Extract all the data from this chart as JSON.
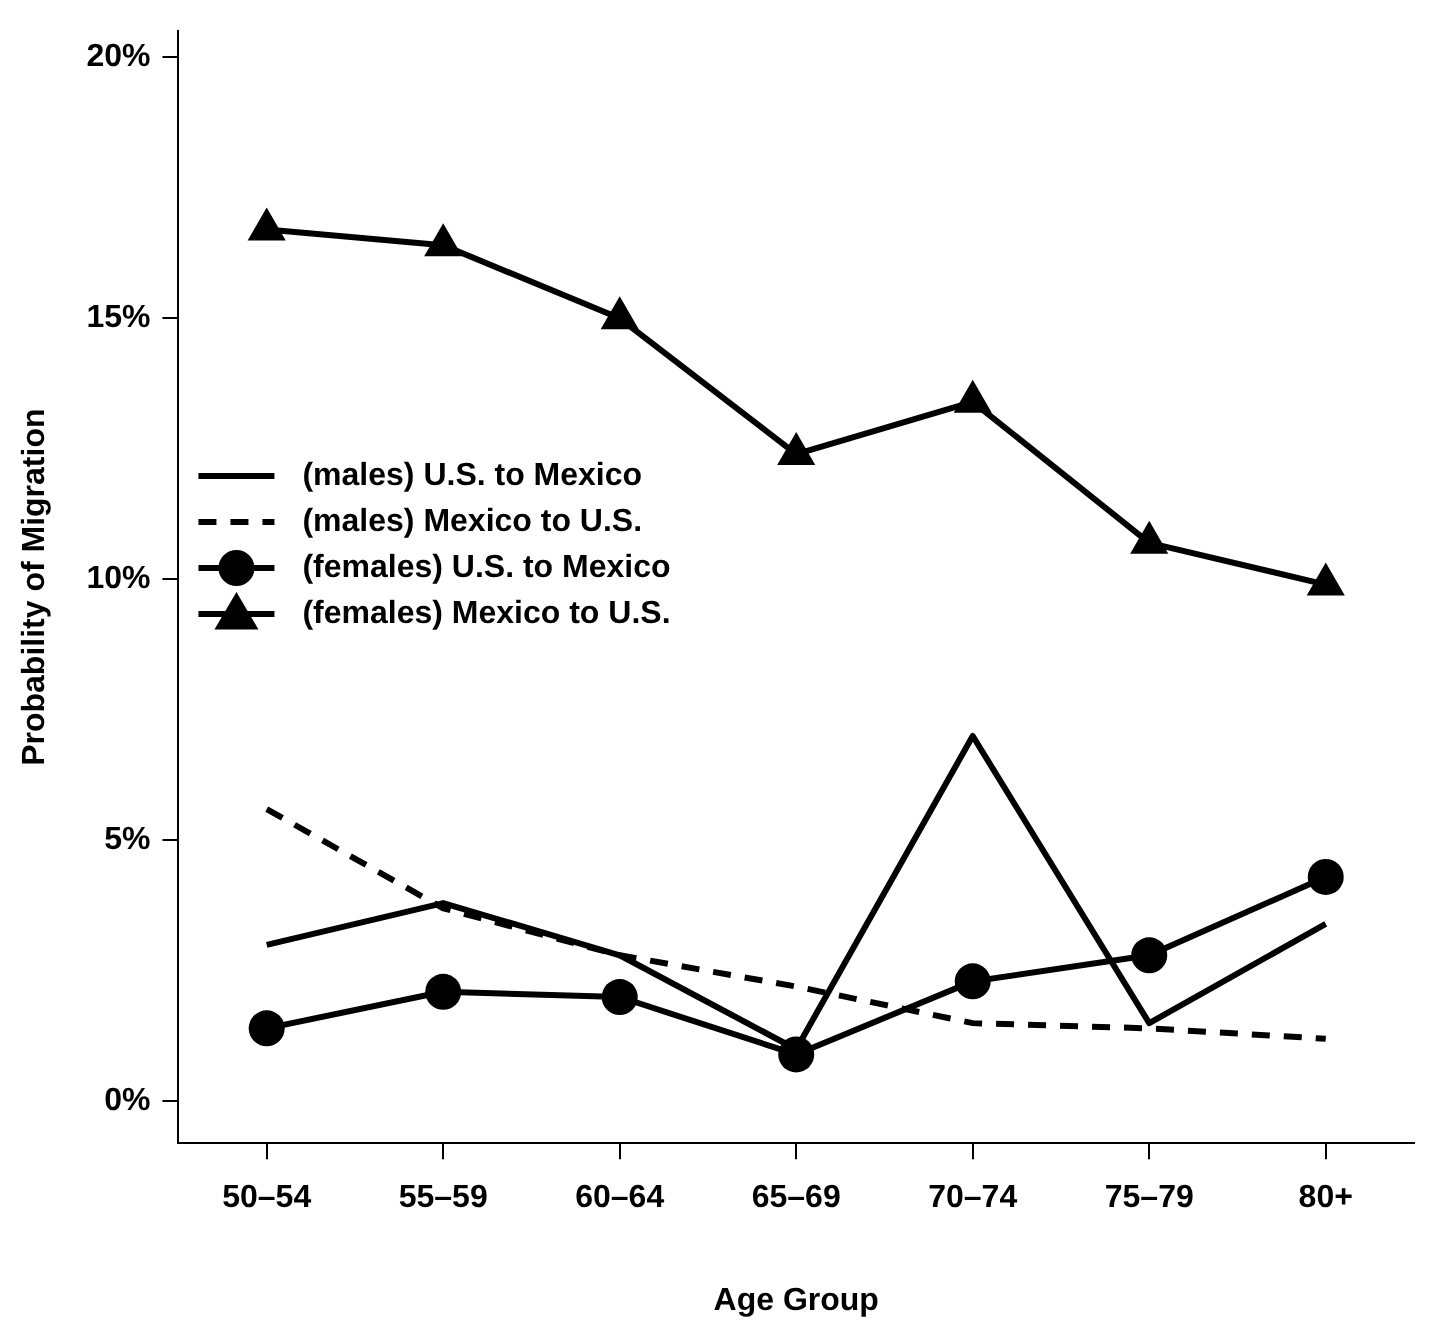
{
  "chart_data": {
    "type": "line",
    "xlabel": "Age Group",
    "ylabel": "Probability of Migration",
    "categories": [
      "50–54",
      "55–59",
      "60–64",
      "65–69",
      "70–74",
      "75–79",
      "80+"
    ],
    "series": [
      {
        "name": "(males) U.S. to Mexico",
        "color": "#000000",
        "marker": "none",
        "line_style": "solid",
        "values": [
          3.0,
          3.8,
          2.8,
          1.0,
          7.0,
          1.5,
          3.4
        ]
      },
      {
        "name": "(males) Mexico to U.S.",
        "color": "#000000",
        "marker": "none",
        "line_style": "dashed",
        "values": [
          5.6,
          3.7,
          2.8,
          2.2,
          1.5,
          1.4,
          1.2
        ]
      },
      {
        "name": "(females) U.S. to Mexico",
        "color": "#000000",
        "marker": "circle",
        "line_style": "solid",
        "values": [
          1.4,
          2.1,
          2.0,
          0.9,
          2.3,
          2.8,
          4.3
        ]
      },
      {
        "name": "(females) Mexico to U.S.",
        "color": "#000000",
        "marker": "triangle",
        "line_style": "solid",
        "values": [
          16.7,
          16.4,
          15.0,
          12.4,
          13.4,
          10.7,
          9.9
        ]
      }
    ],
    "ylim": [
      -0.8,
      20.5
    ],
    "yticks": [
      {
        "value": 0,
        "label": "0%"
      },
      {
        "value": 5,
        "label": "5%"
      },
      {
        "value": 10,
        "label": "10%"
      },
      {
        "value": 15,
        "label": "15%"
      },
      {
        "value": 20,
        "label": "20%"
      }
    ],
    "grid": false,
    "legend": "left"
  }
}
